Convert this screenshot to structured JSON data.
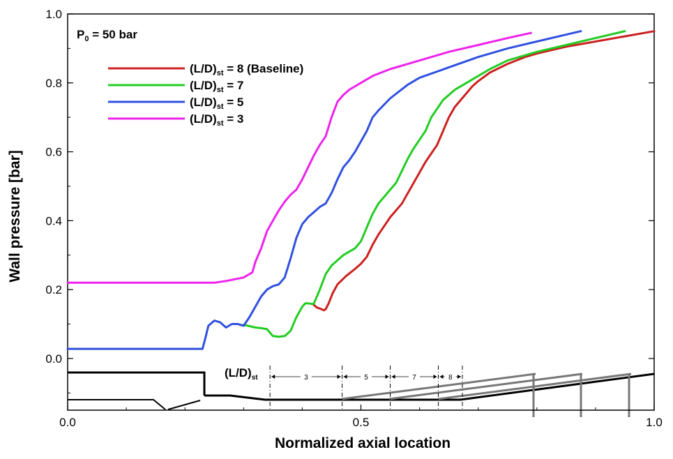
{
  "chart_data": {
    "type": "line",
    "title": "",
    "xlabel": "Normalized axial location",
    "ylabel": "Wall pressure [bar]",
    "xlim": [
      0.0,
      1.0
    ],
    "ylim": [
      -0.15,
      1.0
    ],
    "x_ticks": [
      0.0,
      0.5,
      1.0
    ],
    "x_tick_labels": [
      "0.0",
      "0.5",
      "1.0"
    ],
    "y_ticks": [
      0.0,
      0.2,
      0.4,
      0.6,
      0.8,
      1.0
    ],
    "y_tick_labels": [
      "0.0",
      "0.2",
      "0.4",
      "0.6",
      "0.8",
      "1.0"
    ],
    "annotation": {
      "p0_label": "P",
      "p0_sub": "0",
      "p0_value": " = 50 bar",
      "ld_label": "(L/D)",
      "ld_sub": "st",
      "markers": [
        {
          "label": "3",
          "x_start": 0.345,
          "x_end": 0.468
        },
        {
          "label": "5",
          "x_start": 0.468,
          "x_end": 0.55
        },
        {
          "label": "7",
          "x_start": 0.55,
          "x_end": 0.632
        },
        {
          "label": "8",
          "x_start": 0.632,
          "x_end": 0.673
        }
      ]
    },
    "legend_position": "top-left",
    "series": [
      {
        "name": "(L/D)st = 8 (Baseline)",
        "legend_main": "(L/D)",
        "legend_sub": "st",
        "legend_rest": " = 8 (Baseline)",
        "color": "#cc2020",
        "x": [
          0.418,
          0.425,
          0.43,
          0.437,
          0.44,
          0.445,
          0.452,
          0.46,
          0.475,
          0.49,
          0.5,
          0.51,
          0.52,
          0.53,
          0.54,
          0.55,
          0.56,
          0.57,
          0.58,
          0.59,
          0.6,
          0.61,
          0.62,
          0.63,
          0.64,
          0.65,
          0.66,
          0.67,
          0.68,
          0.69,
          0.7,
          0.72,
          0.75,
          0.78,
          0.8,
          0.85,
          0.9,
          0.95,
          1.0
        ],
        "y": [
          0.158,
          0.148,
          0.145,
          0.14,
          0.143,
          0.16,
          0.19,
          0.215,
          0.24,
          0.26,
          0.275,
          0.295,
          0.33,
          0.36,
          0.385,
          0.41,
          0.43,
          0.45,
          0.48,
          0.51,
          0.54,
          0.57,
          0.595,
          0.62,
          0.66,
          0.7,
          0.73,
          0.75,
          0.77,
          0.79,
          0.805,
          0.83,
          0.855,
          0.875,
          0.885,
          0.905,
          0.92,
          0.935,
          0.95
        ]
      },
      {
        "name": "(L/D)st = 7",
        "legend_main": "(L/D)",
        "legend_sub": "st",
        "legend_rest": " = 7",
        "color": "#22cc22",
        "x": [
          0.3,
          0.32,
          0.33,
          0.34,
          0.345,
          0.35,
          0.36,
          0.37,
          0.38,
          0.39,
          0.4,
          0.405,
          0.41,
          0.418,
          0.42,
          0.43,
          0.44,
          0.45,
          0.46,
          0.47,
          0.48,
          0.49,
          0.5,
          0.51,
          0.52,
          0.53,
          0.54,
          0.55,
          0.56,
          0.57,
          0.58,
          0.59,
          0.6,
          0.61,
          0.62,
          0.64,
          0.66,
          0.68,
          0.7,
          0.72,
          0.75,
          0.8,
          0.85,
          0.9,
          0.95
        ],
        "y": [
          0.098,
          0.09,
          0.088,
          0.085,
          0.075,
          0.065,
          0.063,
          0.065,
          0.08,
          0.12,
          0.15,
          0.16,
          0.16,
          0.158,
          0.16,
          0.2,
          0.245,
          0.27,
          0.285,
          0.3,
          0.31,
          0.32,
          0.34,
          0.38,
          0.42,
          0.45,
          0.47,
          0.49,
          0.51,
          0.545,
          0.58,
          0.61,
          0.635,
          0.66,
          0.7,
          0.75,
          0.78,
          0.8,
          0.82,
          0.84,
          0.865,
          0.89,
          0.91,
          0.93,
          0.95
        ]
      },
      {
        "name": "(L/D)st = 5",
        "legend_main": "(L/D)",
        "legend_sub": "st",
        "legend_rest": " = 5",
        "color": "#3050e0",
        "x": [
          0.0,
          0.23,
          0.235,
          0.24,
          0.25,
          0.26,
          0.27,
          0.28,
          0.29,
          0.3,
          0.31,
          0.32,
          0.33,
          0.34,
          0.35,
          0.36,
          0.37,
          0.38,
          0.39,
          0.4,
          0.41,
          0.42,
          0.43,
          0.44,
          0.45,
          0.46,
          0.47,
          0.48,
          0.49,
          0.5,
          0.51,
          0.52,
          0.53,
          0.55,
          0.58,
          0.6,
          0.65,
          0.7,
          0.75,
          0.8,
          0.85,
          0.875
        ],
        "y": [
          0.028,
          0.028,
          0.06,
          0.095,
          0.11,
          0.105,
          0.09,
          0.1,
          0.1,
          0.095,
          0.12,
          0.15,
          0.18,
          0.2,
          0.21,
          0.215,
          0.235,
          0.29,
          0.35,
          0.39,
          0.41,
          0.425,
          0.44,
          0.45,
          0.48,
          0.52,
          0.555,
          0.575,
          0.6,
          0.63,
          0.66,
          0.7,
          0.72,
          0.755,
          0.795,
          0.815,
          0.845,
          0.875,
          0.9,
          0.92,
          0.94,
          0.95
        ]
      },
      {
        "name": "(L/D)st = 3",
        "legend_main": "(L/D)",
        "legend_sub": "st",
        "legend_rest": " = 3",
        "color": "#ee22ee",
        "x": [
          0.0,
          0.25,
          0.27,
          0.3,
          0.315,
          0.32,
          0.33,
          0.34,
          0.35,
          0.36,
          0.37,
          0.38,
          0.39,
          0.4,
          0.41,
          0.42,
          0.43,
          0.44,
          0.45,
          0.46,
          0.47,
          0.48,
          0.5,
          0.52,
          0.55,
          0.6,
          0.65,
          0.7,
          0.75,
          0.79
        ],
        "y": [
          0.22,
          0.22,
          0.225,
          0.235,
          0.25,
          0.28,
          0.32,
          0.37,
          0.4,
          0.43,
          0.455,
          0.475,
          0.49,
          0.52,
          0.555,
          0.59,
          0.62,
          0.645,
          0.7,
          0.745,
          0.765,
          0.78,
          0.8,
          0.82,
          0.84,
          0.865,
          0.89,
          0.91,
          0.93,
          0.945
        ]
      }
    ]
  }
}
